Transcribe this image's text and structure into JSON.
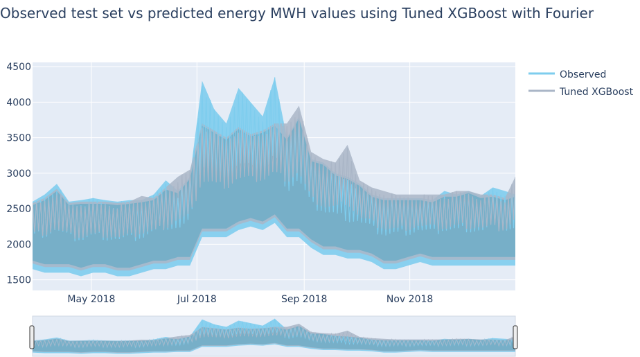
{
  "chart_data": {
    "type": "line",
    "title": "Observed test set vs predicted energy MWH values using Tuned XGBoost with Fourier",
    "xlabel": "",
    "ylabel": "",
    "x_range": [
      "2018-03-28",
      "2019-01-01"
    ],
    "ylim": [
      1350,
      4560
    ],
    "y_ticks": [
      1500,
      2000,
      2500,
      3000,
      3500,
      4000,
      4500
    ],
    "x_ticks": [
      {
        "label": "May 2018",
        "date": "2018-05-01"
      },
      {
        "label": "Jul 2018",
        "date": "2018-07-01"
      },
      {
        "label": "Sep 2018",
        "date": "2018-09-01"
      },
      {
        "label": "Nov 2018",
        "date": "2018-11-01"
      }
    ],
    "grid": true,
    "legend_position": "top-right",
    "rangeslider": true,
    "x": [
      "2018-03-28",
      "2018-04-04",
      "2018-04-11",
      "2018-04-18",
      "2018-04-25",
      "2018-05-02",
      "2018-05-09",
      "2018-05-16",
      "2018-05-23",
      "2018-05-30",
      "2018-06-06",
      "2018-06-13",
      "2018-06-20",
      "2018-06-27",
      "2018-07-04",
      "2018-07-11",
      "2018-07-18",
      "2018-07-25",
      "2018-08-01",
      "2018-08-08",
      "2018-08-15",
      "2018-08-22",
      "2018-08-29",
      "2018-09-05",
      "2018-09-12",
      "2018-09-19",
      "2018-09-26",
      "2018-10-03",
      "2018-10-10",
      "2018-10-17",
      "2018-10-24",
      "2018-10-31",
      "2018-11-07",
      "2018-11-14",
      "2018-11-21",
      "2018-11-28",
      "2018-12-05",
      "2018-12-12",
      "2018-12-19",
      "2018-12-26",
      "2019-01-01"
    ],
    "series": [
      {
        "name": "Observed",
        "color": "#7ecdee",
        "high": [
          2600,
          2700,
          2850,
          2600,
          2620,
          2650,
          2620,
          2600,
          2620,
          2620,
          2700,
          2900,
          2750,
          2950,
          4300,
          3900,
          3700,
          4200,
          4000,
          3800,
          4350,
          3500,
          3800,
          3200,
          3150,
          3000,
          2950,
          2850,
          2700,
          2650,
          2650,
          2650,
          2650,
          2620,
          2750,
          2700,
          2750,
          2680,
          2800,
          2750,
          2700
        ],
        "low": [
          1650,
          1600,
          1600,
          1600,
          1550,
          1600,
          1600,
          1550,
          1550,
          1600,
          1650,
          1650,
          1700,
          1700,
          2100,
          2100,
          2100,
          2200,
          2250,
          2200,
          2300,
          2100,
          2100,
          1950,
          1850,
          1850,
          1800,
          1800,
          1750,
          1650,
          1650,
          1700,
          1750,
          1700,
          1700,
          1700,
          1700,
          1700,
          1700,
          1700,
          1700
        ]
      },
      {
        "name": "Tuned XGBoost",
        "color": "#aab6c7",
        "high": [
          2580,
          2650,
          2780,
          2580,
          2600,
          2600,
          2600,
          2580,
          2600,
          2680,
          2650,
          2800,
          2950,
          3050,
          3700,
          3600,
          3500,
          3650,
          3550,
          3600,
          3700,
          3700,
          3950,
          3300,
          3200,
          3150,
          3400,
          2900,
          2800,
          2750,
          2700,
          2700,
          2700,
          2700,
          2700,
          2750,
          2750,
          2700,
          2700,
          2650,
          2950
        ]
      }
    ]
  },
  "legend": {
    "items": [
      "Observed",
      "Tuned XGBoost"
    ]
  }
}
